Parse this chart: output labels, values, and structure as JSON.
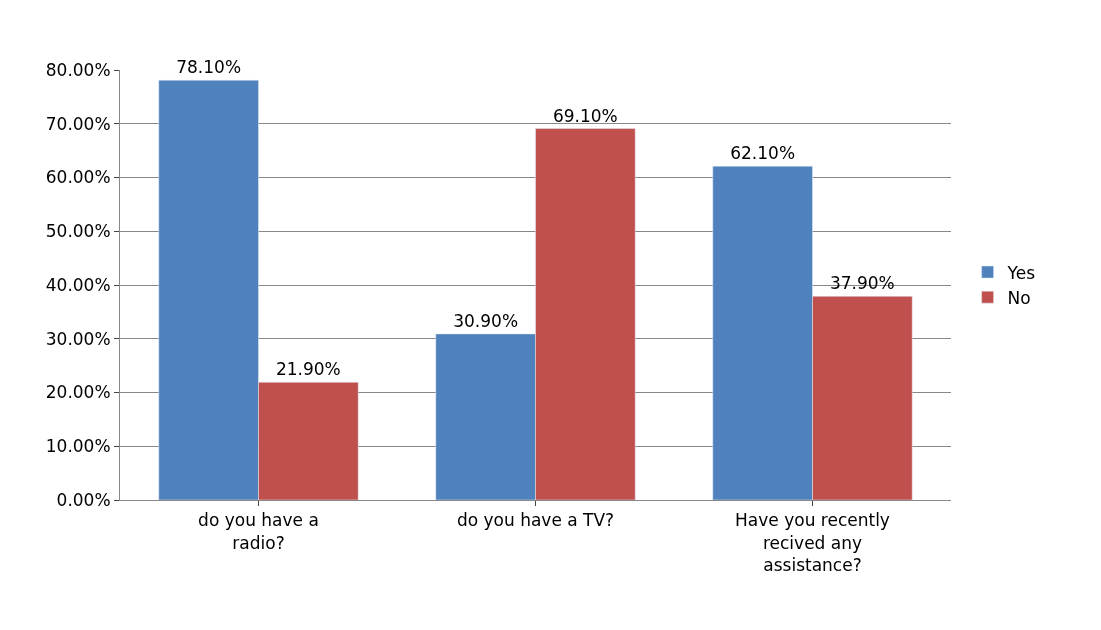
{
  "chart_data": {
    "type": "bar",
    "categories": [
      "do you have a radio?",
      "do you have a TV?",
      "Have you recently recived any assistance?"
    ],
    "series": [
      {
        "name": "Yes",
        "color": "#4f81bd",
        "values": [
          78.1,
          30.9,
          62.1
        ],
        "value_labels": [
          "78.10%",
          "30.90%",
          "62.10%"
        ]
      },
      {
        "name": "No",
        "color": "#c0504d",
        "values": [
          21.9,
          69.1,
          37.9
        ],
        "value_labels": [
          "21.90%",
          "69.10%",
          "37.90%"
        ]
      }
    ],
    "ylim": [
      0,
      80
    ],
    "yticks": [
      {
        "value": 0,
        "label": "0.00%"
      },
      {
        "value": 10,
        "label": "10.00%"
      },
      {
        "value": 20,
        "label": "20.00%"
      },
      {
        "value": 30,
        "label": "30.00%"
      },
      {
        "value": 40,
        "label": "40.00%"
      },
      {
        "value": 50,
        "label": "50.00%"
      },
      {
        "value": 60,
        "label": "60.00%"
      },
      {
        "value": 70,
        "label": "70.00%"
      },
      {
        "value": 80,
        "label": "80.00%"
      }
    ],
    "grid": "y",
    "legend": "right"
  }
}
